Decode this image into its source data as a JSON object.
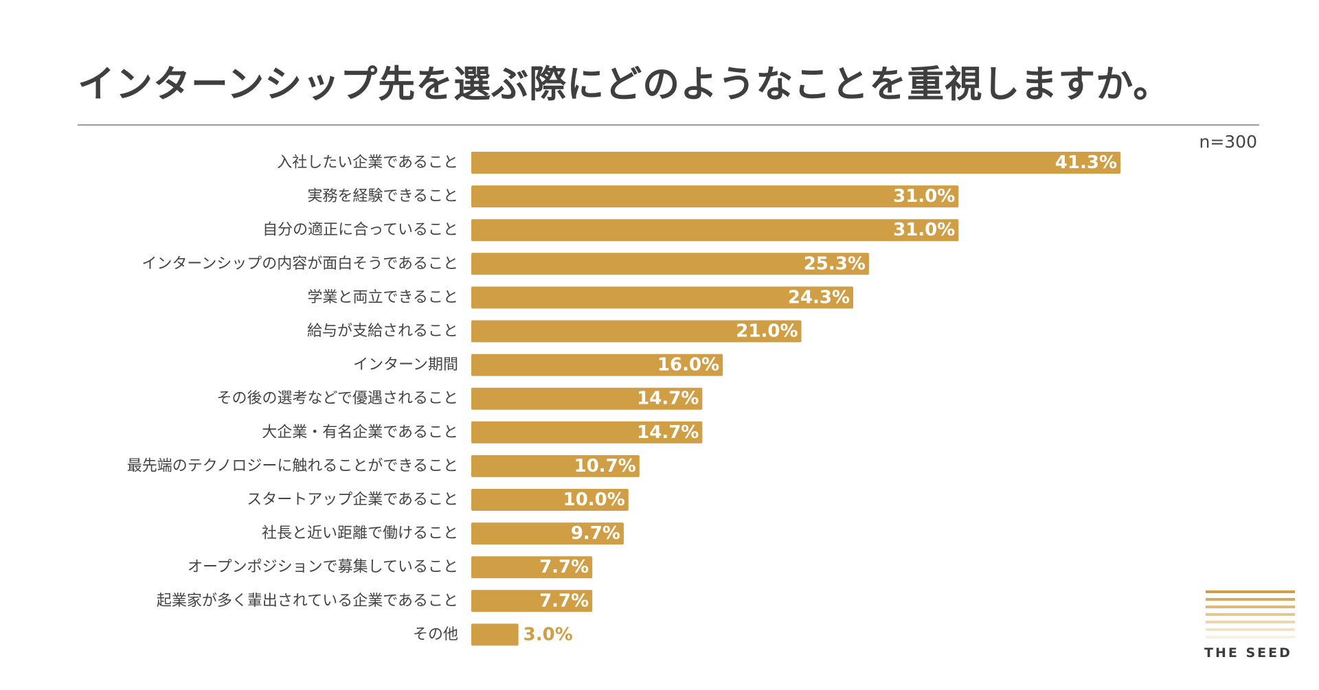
{
  "title": "インターンシップ先を選ぶ際にどのようなことを重視しますか。",
  "sample_size": "n=300",
  "logo": {
    "name": "THE SEED",
    "stripes": [
      "#cf9e45",
      "#d6ab5e",
      "#ddb978",
      "#e4c793",
      "#ebd5ae",
      "#f2e3c9",
      "#f8f0e3"
    ]
  },
  "colors": {
    "bar": "#cf9e45",
    "label_inside": "#ffffff",
    "label_outside": "#cf9e45",
    "category_text": "#444444"
  },
  "chart_data": {
    "type": "bar",
    "orientation": "horizontal",
    "title": "インターンシップ先を選ぶ際にどのようなことを重視しますか。",
    "xlabel": "",
    "ylabel": "",
    "unit": "%",
    "xlim": [
      0,
      41.3
    ],
    "grid": false,
    "categories": [
      "入社したい企業であること",
      "実務を経験できること",
      "自分の適正に合っていること",
      "インターンシップの内容が面白そうであること",
      "学業と両立できること",
      "給与が支給されること",
      "インターン期間",
      "その後の選考などで優遇されること",
      "大企業・有名企業であること",
      "最先端のテクノロジーに触れることができること",
      "スタートアップ企業であること",
      "社長と近い距離で働けること",
      "オープンポジションで募集していること",
      "起業家が多く輩出されている企業であること",
      "その他"
    ],
    "values": [
      41.3,
      31.0,
      31.0,
      25.3,
      24.3,
      21.0,
      16.0,
      14.7,
      14.7,
      10.7,
      10.0,
      9.7,
      7.7,
      7.7,
      3.0
    ],
    "value_labels": [
      "41.3%",
      "31.0%",
      "31.0%",
      "25.3%",
      "24.3%",
      "21.0%",
      "16.0%",
      "14.7%",
      "14.7%",
      "10.7%",
      "10.0%",
      "9.7%",
      "7.7%",
      "7.7%",
      "3.0%"
    ]
  }
}
